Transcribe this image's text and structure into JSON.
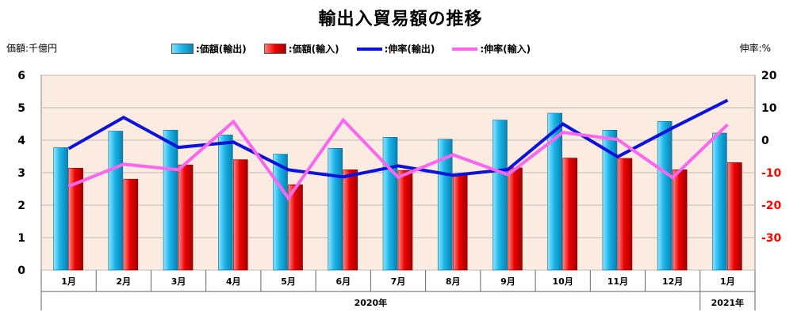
{
  "chart_data": {
    "type": "bar",
    "title": "輸出入貿易額の推移",
    "left_unit": "価額:千億円",
    "right_unit": "伸率:%",
    "categories": [
      "1月",
      "2月",
      "3月",
      "4月",
      "5月",
      "6月",
      "7月",
      "8月",
      "9月",
      "10月",
      "11月",
      "12月",
      "1月"
    ],
    "year_groups": [
      {
        "label": "2020年",
        "start": 0,
        "end": 11
      },
      {
        "label": "2021年",
        "start": 12,
        "end": 12
      }
    ],
    "y_left": {
      "min": 0,
      "max": 6,
      "ticks": [
        "0",
        "1",
        "2",
        "3",
        "4",
        "5",
        "6"
      ]
    },
    "y_right": {
      "min": -40,
      "max": 20,
      "ticks": [
        "20",
        "10",
        "0",
        "-10",
        "-20",
        "-30"
      ]
    },
    "series": [
      {
        "name": ":価額(輸出)",
        "kind": "bar",
        "axis": "left",
        "color": "#1ab4e8",
        "values": [
          3.77,
          4.28,
          4.31,
          4.16,
          3.57,
          3.75,
          4.09,
          4.03,
          4.62,
          4.83,
          4.31,
          4.58,
          4.22
        ]
      },
      {
        "name": ":価額(輸入)",
        "kind": "bar",
        "axis": "left",
        "color": "#ee0000",
        "values": [
          3.14,
          2.8,
          3.24,
          3.4,
          2.63,
          3.09,
          3.07,
          2.96,
          3.15,
          3.45,
          3.44,
          3.09,
          3.31
        ]
      },
      {
        "name": ":伸率(輸出)",
        "kind": "line",
        "axis": "right",
        "color": "#0a12dc",
        "values": [
          -2.6,
          7.0,
          -2.2,
          -0.6,
          -9.1,
          -11.3,
          -7.9,
          -10.8,
          -9.0,
          5.0,
          -5.1,
          3.8,
          12.3
        ]
      },
      {
        "name": ":伸率(輸入)",
        "kind": "line",
        "axis": "right",
        "color": "#ff66ee",
        "values": [
          -14.2,
          -7.4,
          -9.1,
          5.7,
          -17.8,
          6.2,
          -11.4,
          -4.5,
          -10.6,
          2.4,
          0.2,
          -11.5,
          4.8
        ]
      }
    ],
    "colors": {
      "plot_bg": "#fbebe1",
      "grid": "#bbbbbb",
      "right_axis": "#ff0000"
    },
    "legend_position": "top"
  }
}
